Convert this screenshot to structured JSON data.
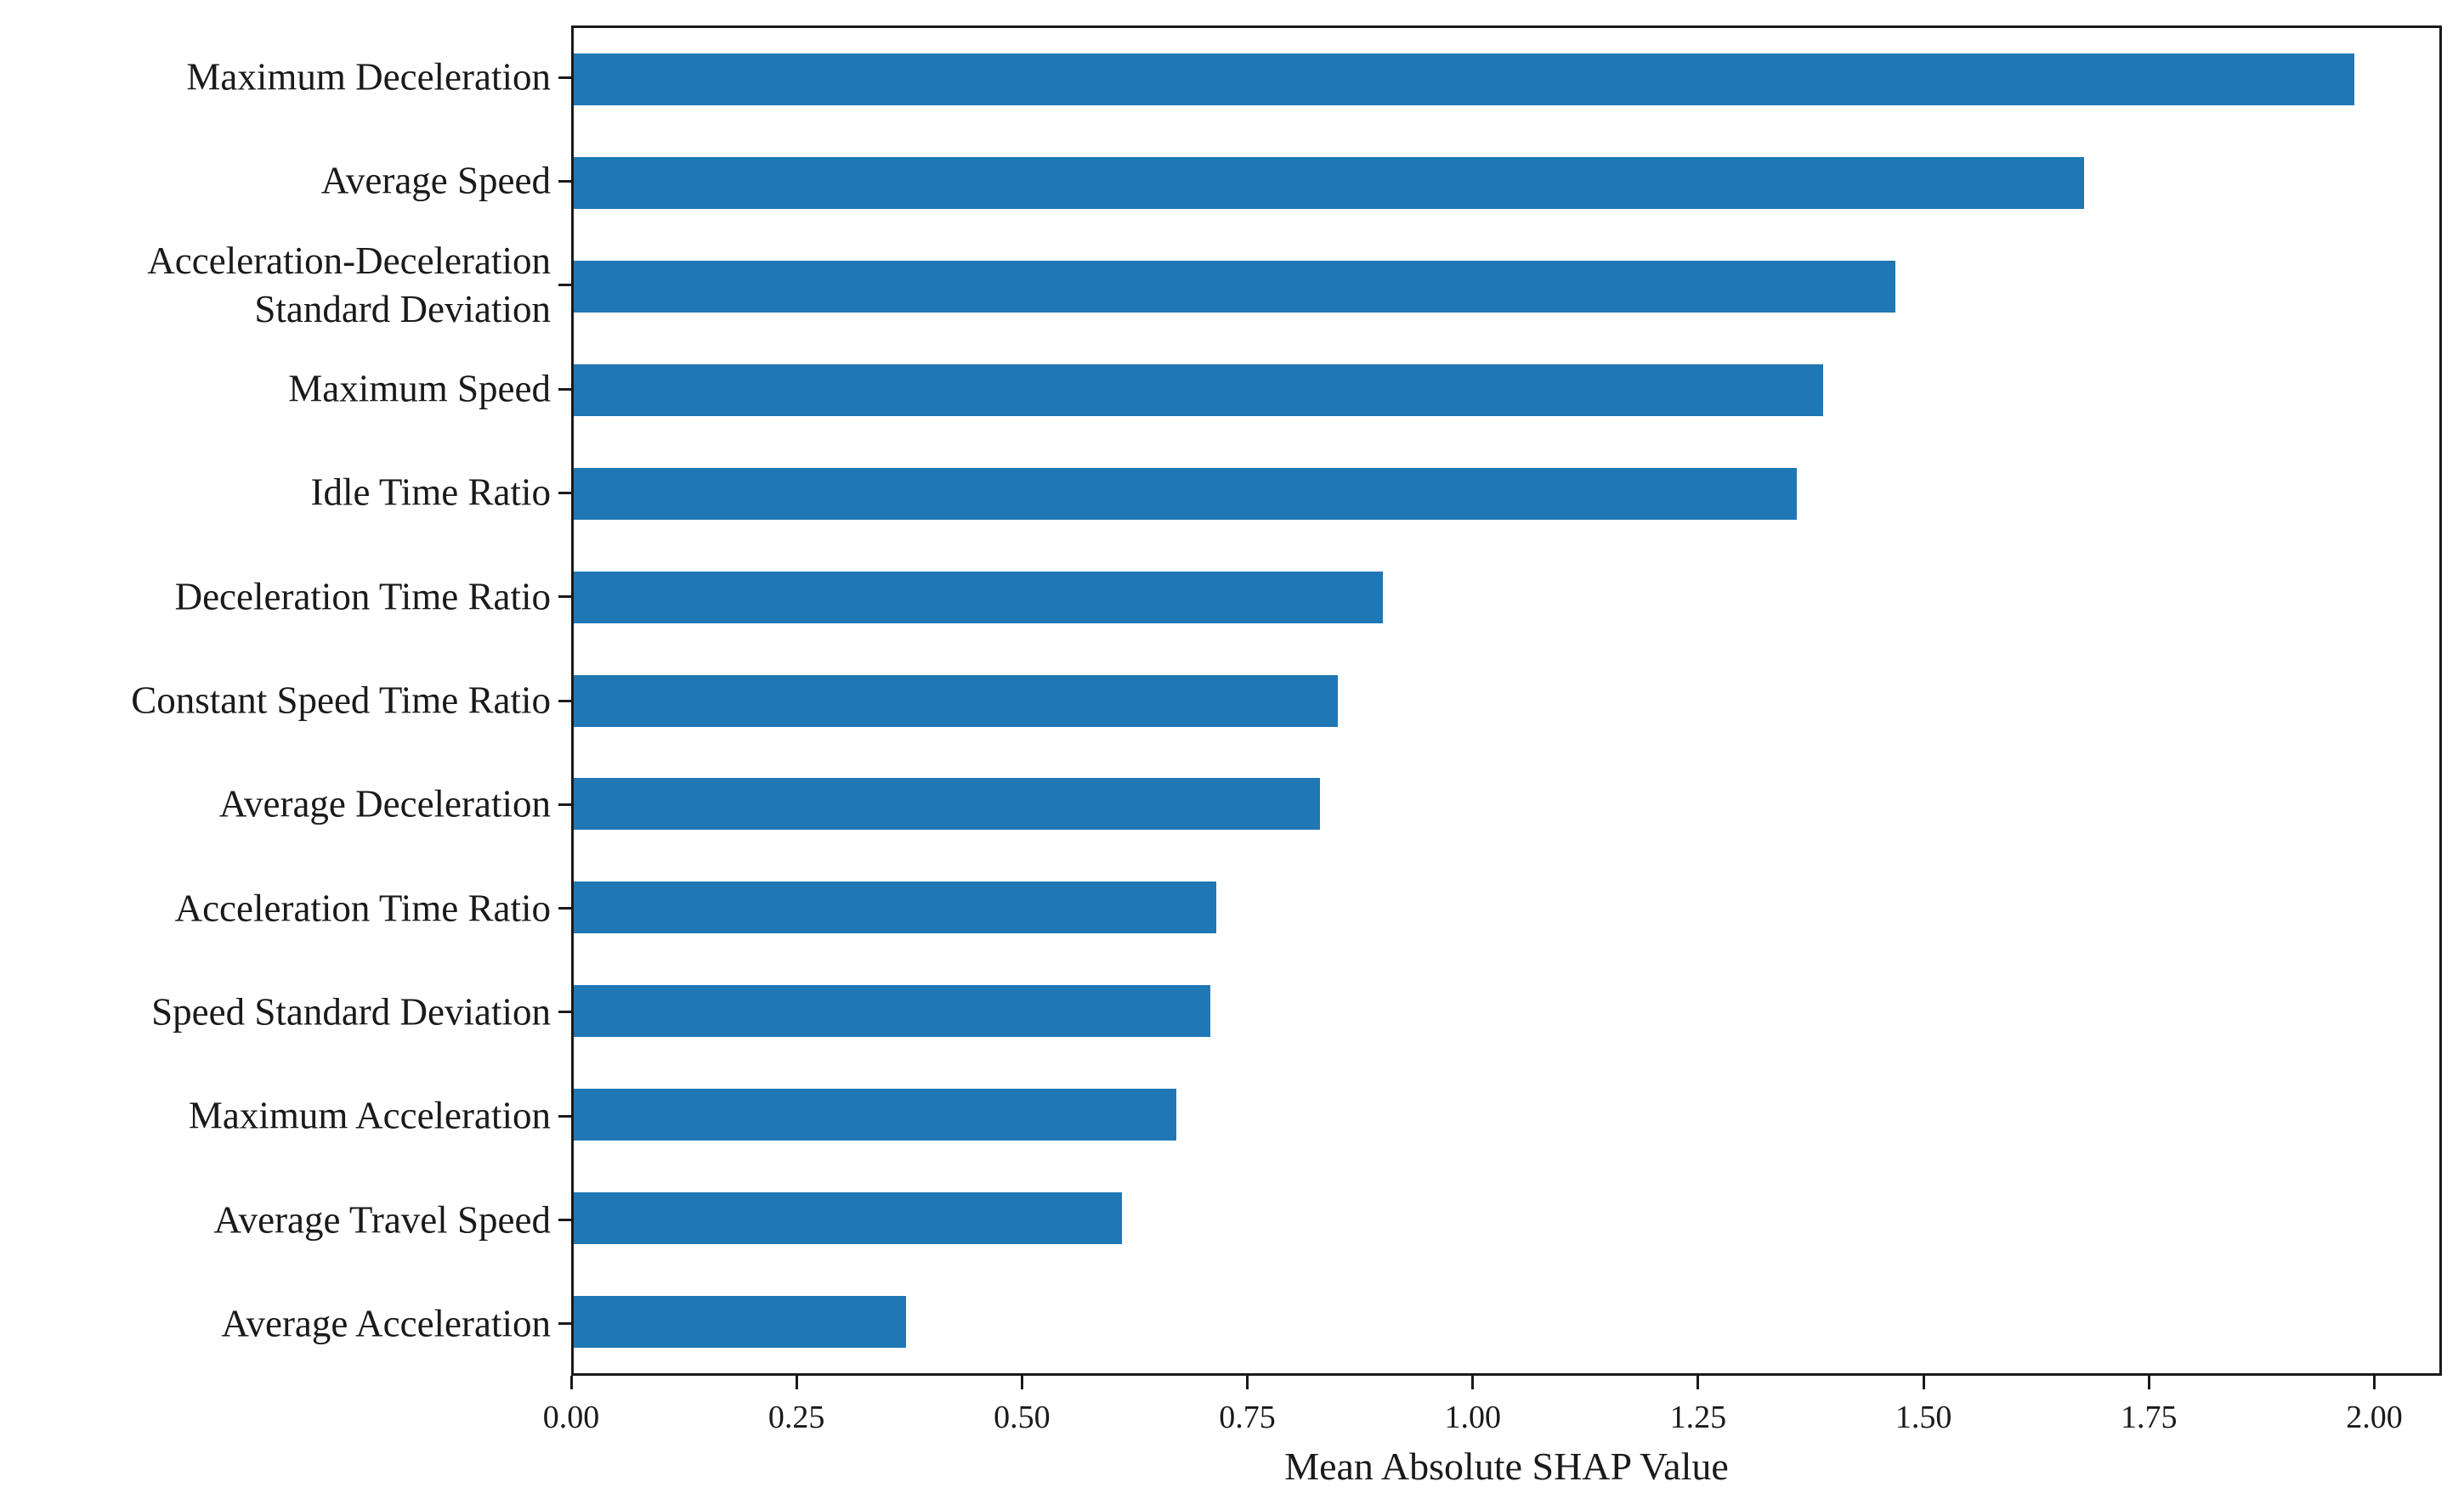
{
  "figure": {
    "background": "#ffffff",
    "text_color": "#1a1a1a",
    "spine_color": "#1a1a1a"
  },
  "chart_data": {
    "type": "bar",
    "orientation": "horizontal",
    "title": "",
    "xlabel": "Mean Absolute SHAP Value",
    "ylabel": "",
    "categories": [
      "Maximum Deceleration",
      "Average Speed",
      "Acceleration-Deceleration\nStandard Deviation",
      "Maximum Speed",
      "Idle Time Ratio",
      "Deceleration Time Ratio",
      "Constant Speed Time Ratio",
      "Average Deceleration",
      "Acceleration Time Ratio",
      "Speed Standard Deviation",
      "Maximum Acceleration",
      "Average Travel Speed",
      "Average Acceleration"
    ],
    "values": [
      1.98,
      1.68,
      1.47,
      1.39,
      1.36,
      0.9,
      0.85,
      0.83,
      0.715,
      0.708,
      0.67,
      0.61,
      0.37
    ],
    "xlim": [
      0,
      2.075
    ],
    "xticks": [
      0,
      0.25,
      0.5,
      0.75,
      1.0,
      1.25,
      1.5,
      1.75,
      2.0
    ],
    "xtick_labels": [
      "0.00",
      "0.25",
      "0.50",
      "0.75",
      "1.00",
      "1.25",
      "1.50",
      "1.75",
      "2.00"
    ],
    "bar_color": "#1f77b4",
    "bar_height_fraction": 0.5,
    "grid": false,
    "legend": "none"
  }
}
